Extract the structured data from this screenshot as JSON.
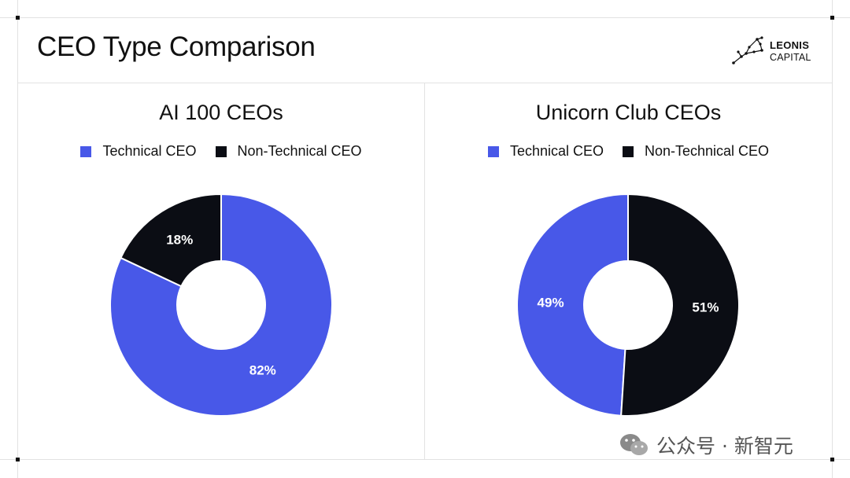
{
  "slide": {
    "title": "CEO Type Comparison"
  },
  "logo": {
    "name": "LEONIS",
    "sub": "CAPITAL",
    "icon": "constellation-icon"
  },
  "colors": {
    "technical": "#4858e8",
    "non_technical": "#0b0d14",
    "frame": "#e2e2e2"
  },
  "watermark": {
    "icon": "wechat-icon",
    "text": "公众号 · 新智元"
  },
  "chart_data": [
    {
      "type": "pie",
      "title": "AI 100 CEOs",
      "legend": [
        "Technical CEO",
        "Non-Technical CEO"
      ],
      "legend_position": "top",
      "slices": [
        {
          "label": "Technical CEO",
          "value": 82,
          "display": "82%",
          "color": "#4858e8"
        },
        {
          "label": "Non-Technical CEO",
          "value": 18,
          "display": "18%",
          "color": "#0b0d14"
        }
      ]
    },
    {
      "type": "pie",
      "title": "Unicorn Club CEOs",
      "legend": [
        "Technical CEO",
        "Non-Technical CEO"
      ],
      "legend_position": "top",
      "slices": [
        {
          "label": "Technical CEO",
          "value": 49,
          "display": "49%",
          "color": "#4858e8"
        },
        {
          "label": "Non-Technical CEO",
          "value": 51,
          "display": "51%",
          "color": "#0b0d14"
        }
      ]
    }
  ]
}
